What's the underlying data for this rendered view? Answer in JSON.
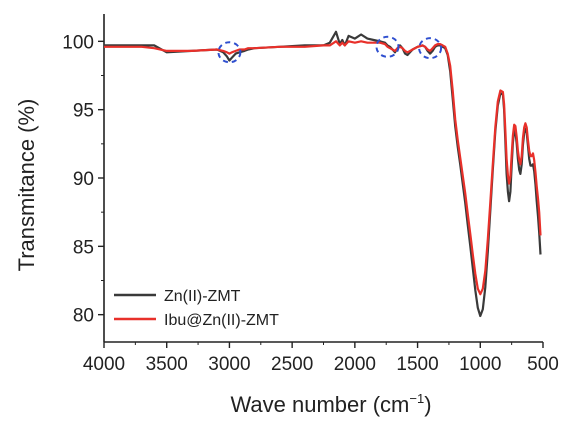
{
  "chart_data": {
    "type": "line",
    "title": "",
    "xlabel": "Wave number (cm",
    "xlabel_sup": "−1",
    "xlabel_close": ")",
    "ylabel": "Transmitance (%)",
    "xlim": [
      4000,
      500
    ],
    "ylim": [
      78,
      102
    ],
    "x_reversed": true,
    "grid": false,
    "legend_position": "bottom-left",
    "x_ticks": [
      4000,
      3500,
      3000,
      2500,
      2000,
      1500,
      1000,
      500
    ],
    "y_ticks": [
      80,
      85,
      90,
      95,
      100
    ],
    "series": [
      {
        "name": "Zn(II)-ZMT",
        "color": "#3a3a3a",
        "x": [
          4000,
          3700,
          3600,
          3500,
          3300,
          3100,
          3050,
          3020,
          3000,
          2980,
          2950,
          2920,
          2880,
          2850,
          2800,
          2600,
          2400,
          2250,
          2200,
          2150,
          2120,
          2100,
          2080,
          2050,
          2000,
          1950,
          1900,
          1850,
          1800,
          1760,
          1740,
          1720,
          1700,
          1680,
          1660,
          1640,
          1620,
          1600,
          1580,
          1560,
          1540,
          1500,
          1460,
          1440,
          1420,
          1400,
          1380,
          1360,
          1340,
          1320,
          1300,
          1280,
          1260,
          1240,
          1220,
          1200,
          1180,
          1160,
          1140,
          1120,
          1100,
          1080,
          1060,
          1040,
          1020,
          1000,
          980,
          960,
          940,
          920,
          900,
          880,
          860,
          840,
          820,
          810,
          800,
          790,
          780,
          770,
          760,
          750,
          740,
          730,
          720,
          710,
          700,
          690,
          680,
          670,
          660,
          650,
          640,
          630,
          620,
          610,
          600,
          590,
          580,
          570,
          560,
          550,
          540,
          530,
          520
        ],
        "y": [
          99.7,
          99.7,
          99.7,
          99.2,
          99.3,
          99.4,
          99.2,
          98.9,
          98.6,
          98.8,
          99.1,
          99.2,
          99.3,
          99.4,
          99.5,
          99.6,
          99.7,
          99.7,
          99.9,
          100.7,
          99.8,
          100.1,
          99.7,
          100.4,
          100.2,
          100.5,
          100.2,
          100.1,
          100.0,
          99.9,
          99.7,
          99.6,
          99.4,
          99.2,
          99.5,
          99.7,
          99.5,
          99.1,
          99.0,
          99.2,
          99.4,
          99.6,
          99.7,
          99.6,
          99.3,
          99.1,
          99.3,
          99.6,
          99.7,
          99.7,
          99.6,
          99.5,
          99.0,
          97.8,
          95.8,
          93.8,
          92.3,
          91.0,
          89.6,
          88.2,
          86.6,
          85.0,
          83.4,
          81.8,
          80.5,
          79.9,
          80.4,
          82.0,
          84.6,
          87.6,
          90.6,
          93.4,
          95.3,
          96.2,
          96.1,
          95.0,
          92.6,
          90.3,
          89.0,
          88.3,
          89.0,
          90.8,
          92.6,
          93.5,
          93.4,
          92.5,
          91.4,
          90.6,
          90.3,
          91.0,
          92.4,
          93.3,
          93.6,
          93.3,
          92.4,
          91.4,
          90.9,
          90.9,
          91.0,
          90.5,
          89.5,
          88.3,
          87.2,
          86.0,
          84.4
        ]
      },
      {
        "name": "Ibu@Zn(II)-ZMT",
        "color": "#e8302a",
        "x": [
          4000,
          3700,
          3600,
          3500,
          3300,
          3100,
          3050,
          3020,
          3000,
          2980,
          2950,
          2920,
          2880,
          2850,
          2800,
          2600,
          2400,
          2250,
          2200,
          2150,
          2120,
          2100,
          2080,
          2050,
          2000,
          1950,
          1900,
          1850,
          1800,
          1760,
          1740,
          1720,
          1700,
          1680,
          1660,
          1640,
          1620,
          1600,
          1580,
          1560,
          1540,
          1500,
          1460,
          1440,
          1420,
          1400,
          1380,
          1360,
          1340,
          1320,
          1300,
          1280,
          1260,
          1240,
          1220,
          1200,
          1180,
          1160,
          1140,
          1120,
          1100,
          1080,
          1060,
          1040,
          1020,
          1000,
          980,
          960,
          940,
          920,
          900,
          880,
          860,
          840,
          820,
          810,
          800,
          790,
          780,
          770,
          760,
          750,
          740,
          730,
          720,
          710,
          700,
          690,
          680,
          670,
          660,
          650,
          640,
          630,
          620,
          610,
          600,
          590,
          580,
          570,
          560,
          550,
          540,
          530,
          520
        ],
        "y": [
          99.6,
          99.6,
          99.5,
          99.3,
          99.3,
          99.4,
          99.3,
          99.2,
          99.1,
          99.2,
          99.3,
          99.4,
          99.4,
          99.5,
          99.5,
          99.6,
          99.6,
          99.7,
          99.7,
          100.0,
          99.7,
          99.9,
          99.7,
          100.0,
          99.9,
          100.0,
          99.9,
          99.9,
          99.9,
          99.8,
          99.6,
          99.5,
          99.4,
          99.3,
          99.5,
          99.6,
          99.5,
          99.3,
          99.2,
          99.3,
          99.4,
          99.6,
          99.7,
          99.6,
          99.4,
          99.3,
          99.5,
          99.7,
          99.8,
          99.8,
          99.7,
          99.6,
          99.1,
          98.2,
          96.4,
          94.3,
          92.8,
          91.5,
          90.2,
          88.9,
          87.4,
          85.9,
          84.4,
          83.0,
          81.9,
          81.5,
          81.9,
          83.2,
          85.5,
          88.2,
          91.0,
          93.7,
          95.6,
          96.4,
          96.3,
          95.4,
          93.4,
          91.4,
          90.2,
          89.6,
          90.1,
          91.6,
          93.1,
          93.9,
          93.8,
          93.0,
          92.0,
          91.3,
          91.0,
          91.6,
          92.9,
          93.7,
          94.0,
          93.7,
          92.8,
          92.0,
          91.6,
          91.6,
          91.8,
          91.3,
          90.4,
          89.4,
          88.5,
          87.5,
          85.8
        ]
      }
    ],
    "annotations": [
      {
        "type": "dashed-circle",
        "color": "#2f4fcf",
        "x": 3000,
        "y": 99.2
      },
      {
        "type": "dashed-circle",
        "color": "#2f4fcf",
        "x": 1740,
        "y": 99.6
      },
      {
        "type": "dashed-circle",
        "color": "#2f4fcf",
        "x": 1400,
        "y": 99.5
      }
    ]
  }
}
